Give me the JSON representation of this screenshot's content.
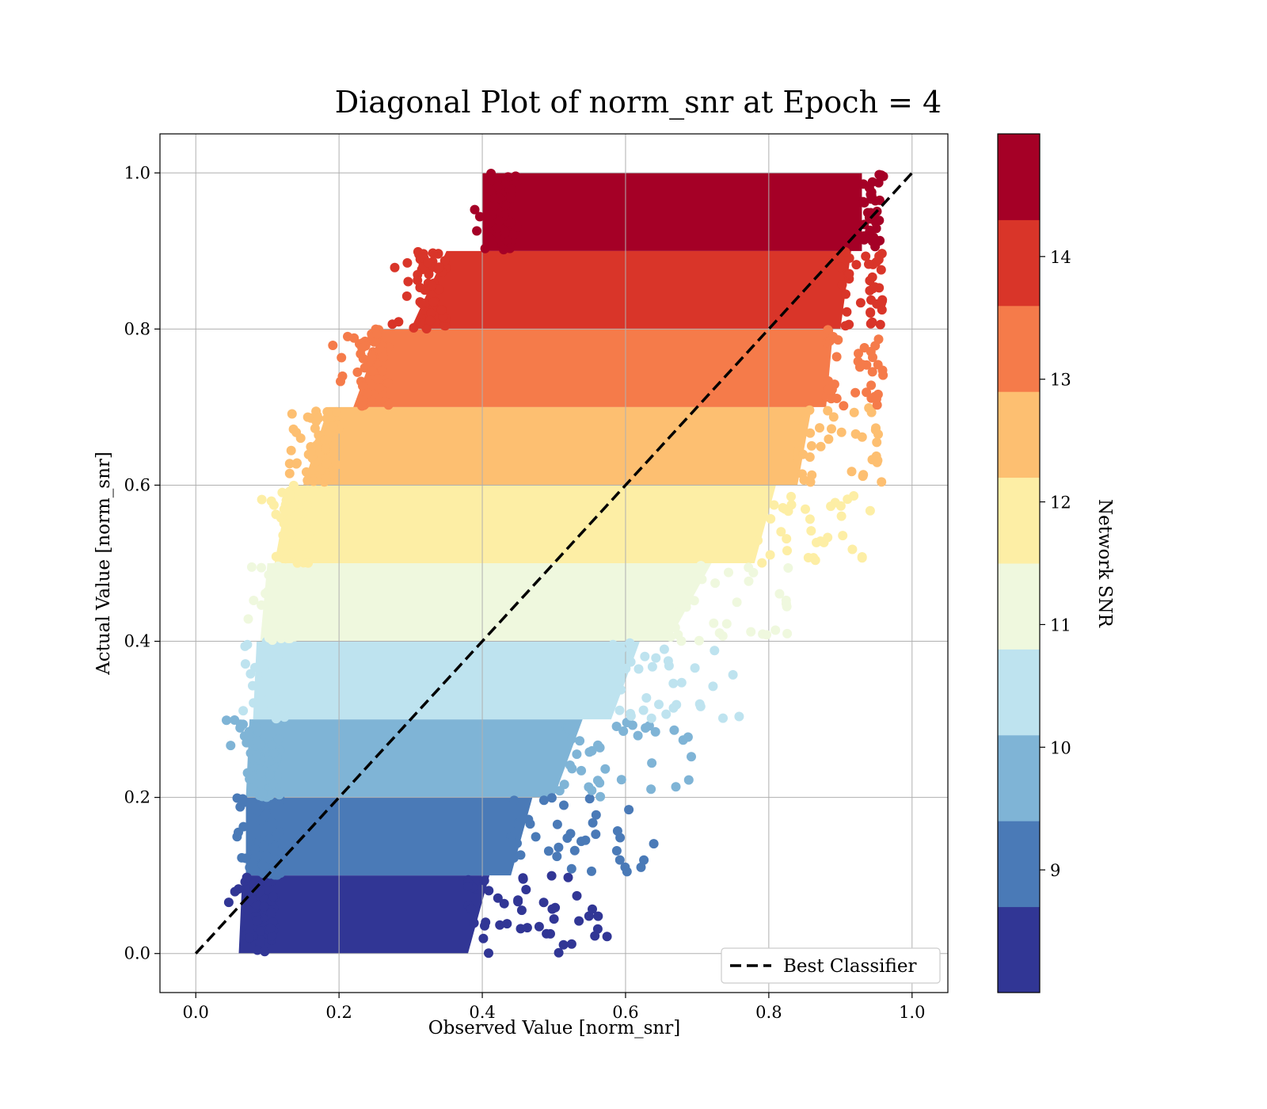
{
  "chart_data": {
    "type": "scatter",
    "title": "Diagonal Plot of norm_snr at Epoch = 4",
    "xlabel": "Observed Value [norm_snr]",
    "ylabel": "Actual Value [norm_snr]",
    "xlim": [
      -0.05,
      1.05
    ],
    "ylim": [
      -0.05,
      1.05
    ],
    "xticks": [
      "0.0",
      "0.2",
      "0.4",
      "0.6",
      "0.8",
      "1.0"
    ],
    "yticks": [
      "0.0",
      "0.2",
      "0.4",
      "0.6",
      "0.8",
      "1.0"
    ],
    "grid": true,
    "legend_position": "lower-right",
    "reference_line": {
      "name": "Best Classifier",
      "x": [
        0.0,
        1.0
      ],
      "y": [
        0.0,
        1.0
      ],
      "style": "dashed",
      "color": "#000000"
    },
    "bands": [
      {
        "snr": 8.5,
        "y": [
          0.0,
          0.1
        ],
        "x_left": 0.06,
        "x_right": 0.38,
        "color": "#313695"
      },
      {
        "snr": 9.0,
        "y": [
          0.1,
          0.2
        ],
        "x_left": 0.07,
        "x_right": 0.44,
        "color": "#4a7ab7"
      },
      {
        "snr": 9.75,
        "y": [
          0.2,
          0.3
        ],
        "x_left": 0.07,
        "x_right": 0.5,
        "color": "#7fb4d6"
      },
      {
        "snr": 10.25,
        "y": [
          0.3,
          0.4
        ],
        "x_left": 0.08,
        "x_right": 0.58,
        "color": "#bee3ef"
      },
      {
        "snr": 11.0,
        "y": [
          0.4,
          0.5
        ],
        "x_left": 0.09,
        "x_right": 0.66,
        "color": "#eff8de"
      },
      {
        "snr": 11.75,
        "y": [
          0.5,
          0.6
        ],
        "x_left": 0.11,
        "x_right": 0.78,
        "color": "#fdeea5"
      },
      {
        "snr": 12.5,
        "y": [
          0.6,
          0.7
        ],
        "x_left": 0.15,
        "x_right": 0.84,
        "color": "#fdbf71"
      },
      {
        "snr": 13.25,
        "y": [
          0.7,
          0.8
        ],
        "x_left": 0.22,
        "x_right": 0.88,
        "color": "#f57b4a"
      },
      {
        "snr": 14.0,
        "y": [
          0.8,
          0.9
        ],
        "x_left": 0.3,
        "x_right": 0.9,
        "color": "#d93529"
      },
      {
        "snr": 14.5,
        "y": [
          0.9,
          1.0
        ],
        "x_left": 0.4,
        "x_right": 0.93,
        "color": "#a50026"
      }
    ],
    "colorbar": {
      "label": "Network SNR",
      "range": [
        8.0,
        15.0
      ],
      "ticks": [
        "9",
        "10",
        "11",
        "12",
        "13",
        "14"
      ],
      "tick_values": [
        9,
        10,
        11,
        12,
        13,
        14
      ],
      "colors": [
        "#313695",
        "#4a7ab7",
        "#7fb4d6",
        "#bee3ef",
        "#eff8de",
        "#fdeea5",
        "#fdbf71",
        "#f57b4a",
        "#d93529",
        "#a50026"
      ]
    }
  }
}
